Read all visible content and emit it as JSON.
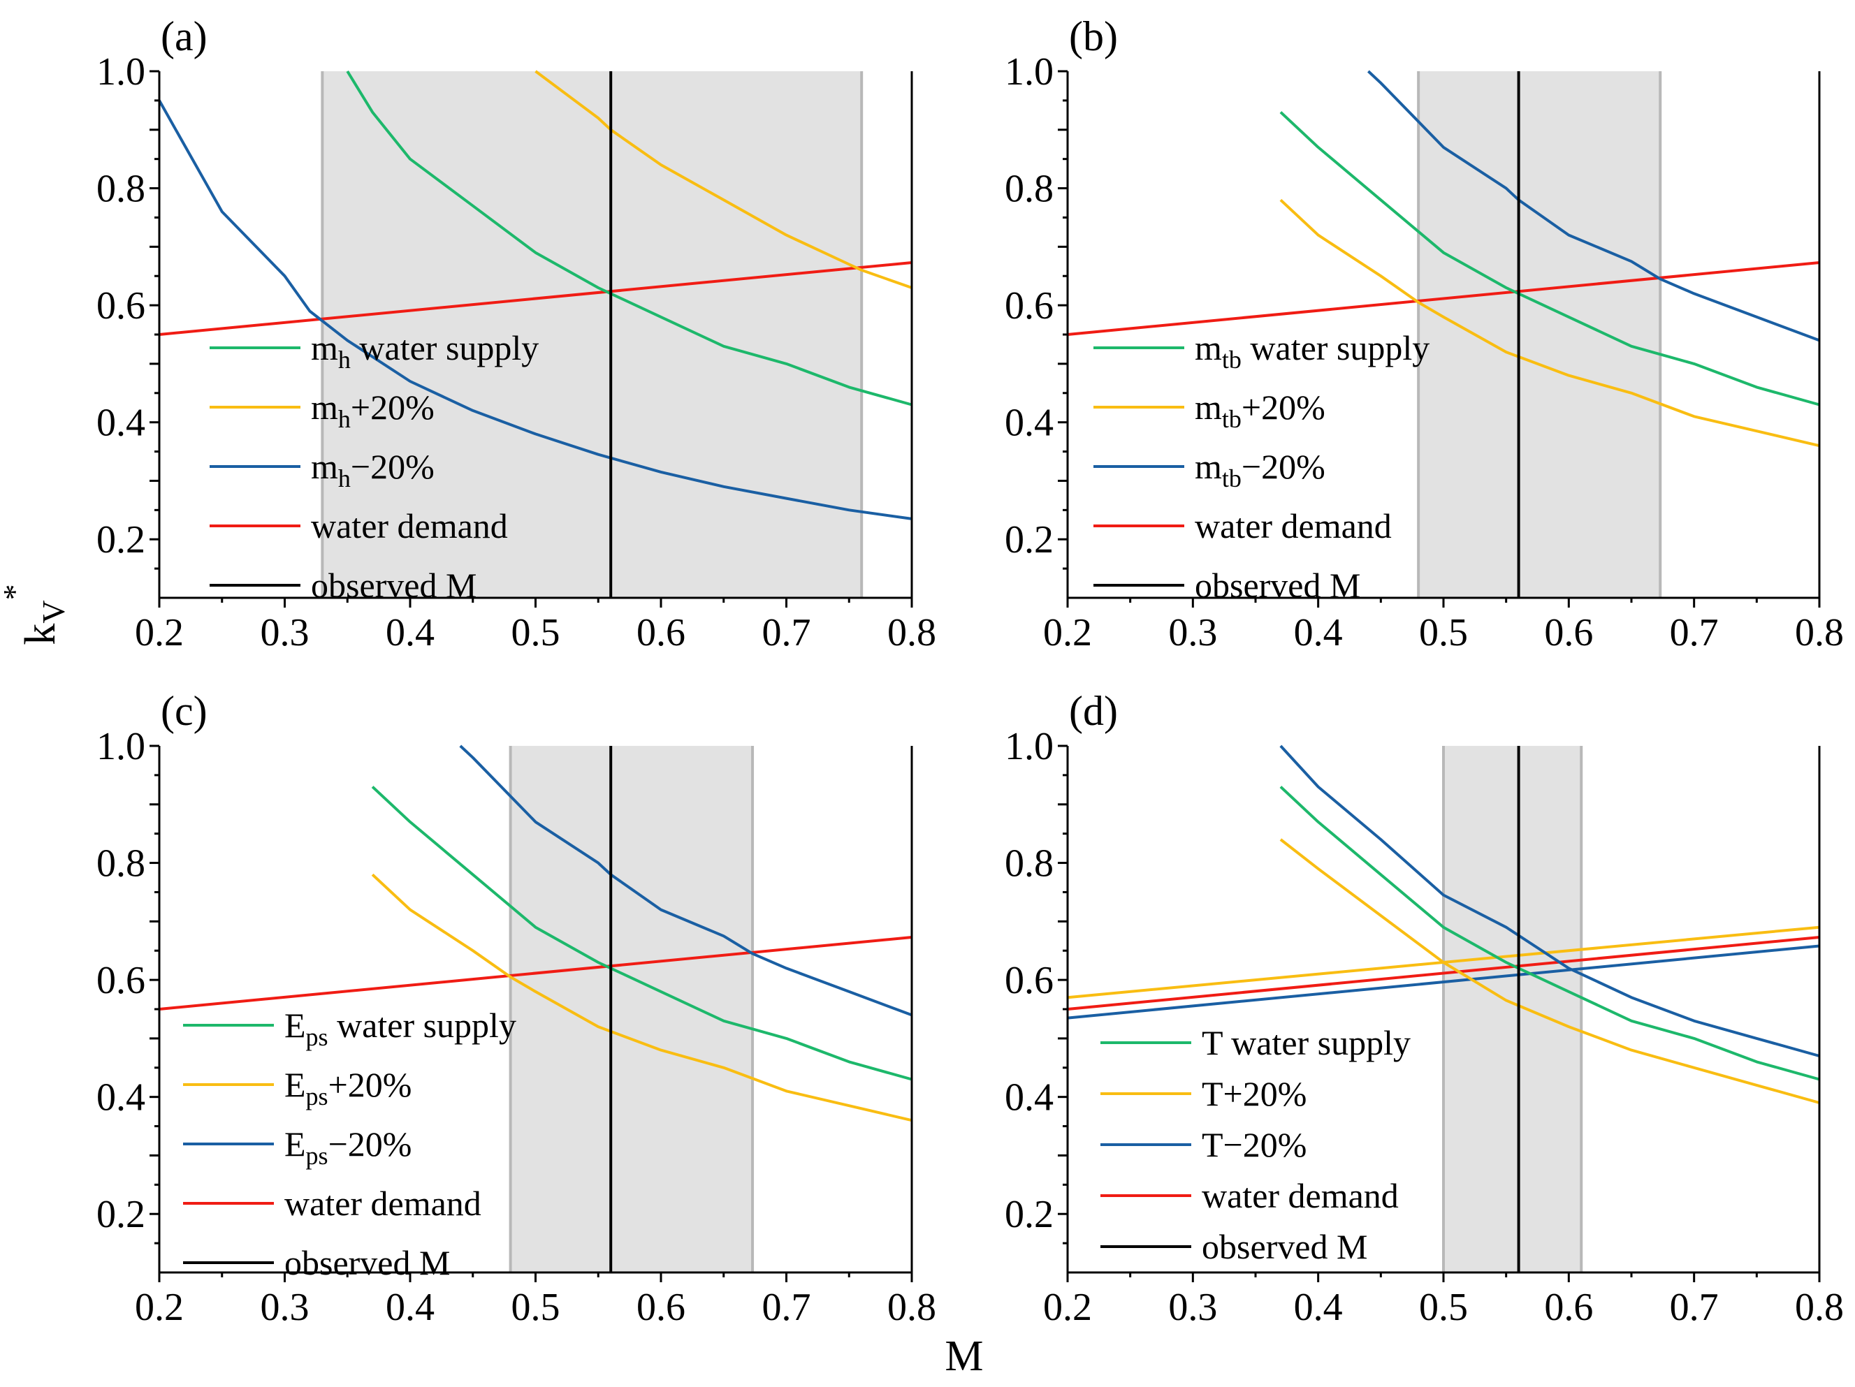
{
  "figure": {
    "xlabel": "M",
    "ylabel": "k",
    "ylabel_sub": "V",
    "ylabel_sup": "*"
  },
  "colors": {
    "supply": "#1db86b",
    "plus20": "#f9bd12",
    "minus20": "#1a5fa3",
    "demand": "#f01c14",
    "observed": "#000000",
    "range_line": "#b8b8b8",
    "shade": "#e2e2e2"
  },
  "chart_data": [
    {
      "type": "line",
      "panel": "(a)",
      "xlim": [
        0.2,
        0.8
      ],
      "ylim": [
        0.1,
        1.0
      ],
      "xticks": [
        "0.2",
        "0.3",
        "0.4",
        "0.5",
        "0.6",
        "0.7",
        "0.8"
      ],
      "yticks": [
        "0.2",
        "0.4",
        "0.6",
        "0.8",
        "1.0"
      ],
      "observed_M": 0.56,
      "shaded_range": [
        0.33,
        0.76
      ],
      "series": [
        {
          "key": "supply",
          "legend_main": "m",
          "legend_sub": "h",
          "legend_rest": " water supply",
          "x": [
            0.35,
            0.37,
            0.4,
            0.45,
            0.5,
            0.55,
            0.56,
            0.6,
            0.65,
            0.7,
            0.75,
            0.8
          ],
          "y": [
            1.0,
            0.93,
            0.85,
            0.77,
            0.69,
            0.63,
            0.62,
            0.58,
            0.53,
            0.5,
            0.46,
            0.43
          ]
        },
        {
          "key": "plus20",
          "legend_main": "m",
          "legend_sub": "h",
          "legend_rest": "+20%",
          "x": [
            0.5,
            0.55,
            0.56,
            0.6,
            0.65,
            0.7,
            0.75,
            0.76,
            0.8
          ],
          "y": [
            1.0,
            0.92,
            0.9,
            0.84,
            0.78,
            0.72,
            0.67,
            0.66,
            0.63
          ]
        },
        {
          "key": "minus20",
          "legend_main": "m",
          "legend_sub": "h",
          "legend_rest": "−20%",
          "x": [
            0.2,
            0.25,
            0.3,
            0.32,
            0.35,
            0.4,
            0.45,
            0.5,
            0.55,
            0.6,
            0.65,
            0.7,
            0.75,
            0.8
          ],
          "y": [
            0.95,
            0.76,
            0.65,
            0.59,
            0.54,
            0.47,
            0.42,
            0.38,
            0.345,
            0.315,
            0.29,
            0.27,
            0.25,
            0.235
          ]
        },
        {
          "key": "demand",
          "legend_main": "water demand",
          "legend_sub": "",
          "legend_rest": "",
          "x": [
            0.2,
            0.8
          ],
          "y": [
            0.55,
            0.673
          ]
        },
        {
          "key": "observed",
          "legend_main": "observed M",
          "legend_sub": "",
          "legend_rest": "",
          "x": [
            0.56,
            0.56
          ],
          "y": [
            0.1,
            1.0
          ]
        }
      ]
    },
    {
      "type": "line",
      "panel": "(b)",
      "xlim": [
        0.2,
        0.8
      ],
      "ylim": [
        0.1,
        1.0
      ],
      "xticks": [
        "0.2",
        "0.3",
        "0.4",
        "0.5",
        "0.6",
        "0.7",
        "0.8"
      ],
      "yticks": [
        "0.2",
        "0.4",
        "0.6",
        "0.8",
        "1.0"
      ],
      "observed_M": 0.56,
      "shaded_range": [
        0.48,
        0.673
      ],
      "series": [
        {
          "key": "supply",
          "legend_main": "m",
          "legend_sub": "tb",
          "legend_rest": " water supply",
          "x": [
            0.37,
            0.4,
            0.45,
            0.5,
            0.55,
            0.56,
            0.6,
            0.65,
            0.7,
            0.75,
            0.8
          ],
          "y": [
            0.93,
            0.87,
            0.78,
            0.69,
            0.63,
            0.62,
            0.58,
            0.53,
            0.5,
            0.46,
            0.43
          ]
        },
        {
          "key": "plus20",
          "legend_main": "m",
          "legend_sub": "tb",
          "legend_rest": "+20%",
          "x": [
            0.37,
            0.4,
            0.45,
            0.48,
            0.5,
            0.55,
            0.6,
            0.65,
            0.7,
            0.75,
            0.8
          ],
          "y": [
            0.78,
            0.72,
            0.65,
            0.605,
            0.58,
            0.52,
            0.48,
            0.45,
            0.41,
            0.385,
            0.36
          ]
        },
        {
          "key": "minus20",
          "legend_main": "m",
          "legend_sub": "tb",
          "legend_rest": "−20%",
          "x": [
            0.44,
            0.45,
            0.5,
            0.55,
            0.56,
            0.6,
            0.65,
            0.673,
            0.7,
            0.75,
            0.8
          ],
          "y": [
            1.0,
            0.98,
            0.87,
            0.8,
            0.78,
            0.72,
            0.675,
            0.645,
            0.62,
            0.58,
            0.54
          ]
        },
        {
          "key": "demand",
          "legend_main": "water demand",
          "legend_sub": "",
          "legend_rest": "",
          "x": [
            0.2,
            0.8
          ],
          "y": [
            0.55,
            0.673
          ]
        },
        {
          "key": "observed",
          "legend_main": "observed M",
          "legend_sub": "",
          "legend_rest": "",
          "x": [
            0.56,
            0.56
          ],
          "y": [
            0.1,
            1.0
          ]
        }
      ]
    },
    {
      "type": "line",
      "panel": "(c)",
      "xlim": [
        0.2,
        0.8
      ],
      "ylim": [
        0.1,
        1.0
      ],
      "xticks": [
        "0.2",
        "0.3",
        "0.4",
        "0.5",
        "0.6",
        "0.7",
        "0.8"
      ],
      "yticks": [
        "0.2",
        "0.4",
        "0.6",
        "0.8",
        "1.0"
      ],
      "observed_M": 0.56,
      "shaded_range": [
        0.48,
        0.673
      ],
      "series": [
        {
          "key": "supply",
          "legend_main": "E",
          "legend_sub": "ps",
          "legend_rest": " water supply",
          "x": [
            0.37,
            0.4,
            0.45,
            0.5,
            0.55,
            0.56,
            0.6,
            0.65,
            0.7,
            0.75,
            0.8
          ],
          "y": [
            0.93,
            0.87,
            0.78,
            0.69,
            0.63,
            0.62,
            0.58,
            0.53,
            0.5,
            0.46,
            0.43
          ]
        },
        {
          "key": "plus20",
          "legend_main": "E",
          "legend_sub": "ps",
          "legend_rest": "+20%",
          "x": [
            0.37,
            0.4,
            0.45,
            0.48,
            0.5,
            0.55,
            0.6,
            0.65,
            0.7,
            0.75,
            0.8
          ],
          "y": [
            0.78,
            0.72,
            0.65,
            0.605,
            0.58,
            0.52,
            0.48,
            0.45,
            0.41,
            0.385,
            0.36
          ]
        },
        {
          "key": "minus20",
          "legend_main": "E",
          "legend_sub": "ps",
          "legend_rest": "−20%",
          "x": [
            0.44,
            0.45,
            0.5,
            0.55,
            0.56,
            0.6,
            0.65,
            0.673,
            0.7,
            0.75,
            0.8
          ],
          "y": [
            1.0,
            0.98,
            0.87,
            0.8,
            0.78,
            0.72,
            0.675,
            0.645,
            0.62,
            0.58,
            0.54
          ]
        },
        {
          "key": "demand",
          "legend_main": "water demand",
          "legend_sub": "",
          "legend_rest": "",
          "x": [
            0.2,
            0.8
          ],
          "y": [
            0.55,
            0.673
          ]
        },
        {
          "key": "observed",
          "legend_main": "observed M",
          "legend_sub": "",
          "legend_rest": "",
          "x": [
            0.56,
            0.56
          ],
          "y": [
            0.1,
            1.0
          ]
        }
      ]
    },
    {
      "type": "line",
      "panel": "(d)",
      "xlim": [
        0.2,
        0.8
      ],
      "ylim": [
        0.1,
        1.0
      ],
      "xticks": [
        "0.2",
        "0.3",
        "0.4",
        "0.5",
        "0.6",
        "0.7",
        "0.8"
      ],
      "yticks": [
        "0.2",
        "0.4",
        "0.6",
        "0.8",
        "1.0"
      ],
      "observed_M": 0.56,
      "shaded_range": [
        0.5,
        0.61
      ],
      "series": [
        {
          "key": "supply",
          "legend_main": "T ",
          "legend_sub": "",
          "legend_rest": " water supply",
          "x": [
            0.37,
            0.4,
            0.45,
            0.5,
            0.55,
            0.56,
            0.6,
            0.65,
            0.7,
            0.75,
            0.8
          ],
          "y": [
            0.93,
            0.87,
            0.78,
            0.69,
            0.63,
            0.62,
            0.58,
            0.53,
            0.5,
            0.46,
            0.43
          ]
        },
        {
          "key": "plus20",
          "legend_main": "T+20%",
          "legend_sub": "",
          "legend_rest": "",
          "x": [
            0.37,
            0.4,
            0.45,
            0.5,
            0.55,
            0.6,
            0.65,
            0.7,
            0.75,
            0.8
          ],
          "y": [
            0.84,
            0.79,
            0.71,
            0.63,
            0.565,
            0.52,
            0.48,
            0.45,
            0.42,
            0.39
          ]
        },
        {
          "key": "minus20",
          "legend_main": "T−20%",
          "legend_sub": "",
          "legend_rest": "",
          "x": [
            0.37,
            0.4,
            0.45,
            0.5,
            0.55,
            0.6,
            0.65,
            0.7,
            0.75,
            0.8
          ],
          "y": [
            1.0,
            0.93,
            0.84,
            0.745,
            0.69,
            0.62,
            0.57,
            0.53,
            0.5,
            0.47
          ]
        },
        {
          "key": "plus20_demand",
          "legend_main": "",
          "legend_sub": "",
          "legend_rest": "",
          "x": [
            0.2,
            0.8
          ],
          "y": [
            0.57,
            0.69
          ]
        },
        {
          "key": "minus20_demand",
          "legend_main": "",
          "legend_sub": "",
          "legend_rest": "",
          "x": [
            0.2,
            0.8
          ],
          "y": [
            0.535,
            0.658
          ]
        },
        {
          "key": "demand",
          "legend_main": "water demand",
          "legend_sub": "",
          "legend_rest": "",
          "x": [
            0.2,
            0.8
          ],
          "y": [
            0.55,
            0.673
          ]
        },
        {
          "key": "observed",
          "legend_main": "observed M",
          "legend_sub": "",
          "legend_rest": "",
          "x": [
            0.56,
            0.56
          ],
          "y": [
            0.1,
            1.0
          ]
        }
      ]
    }
  ]
}
